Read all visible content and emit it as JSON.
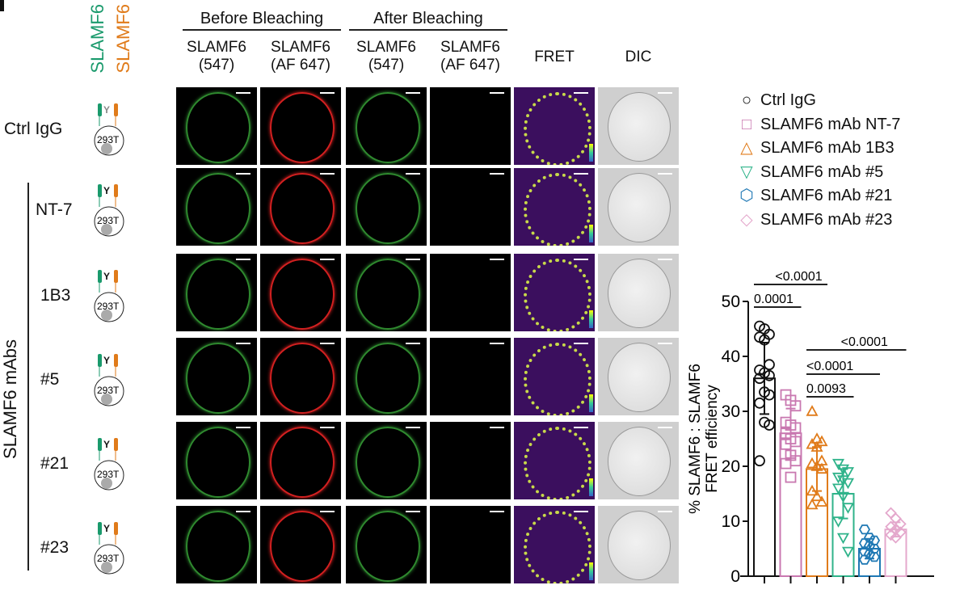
{
  "side_labels": {
    "green": "SLAMF6",
    "orange": "SLAMF6",
    "group": "SLAMF6 mAbs",
    "cell_line": "293T"
  },
  "colors": {
    "green": "#1a9a6c",
    "orange": "#e07b1a"
  },
  "groups": {
    "before": "Before Bleaching",
    "after": "After Bleaching"
  },
  "columns": [
    "SLAMF6\n(547)",
    "SLAMF6\n(AF 647)",
    "SLAMF6\n(547)",
    "SLAMF6\n(AF 647)",
    "FRET",
    "DIC"
  ],
  "rows": [
    "Ctrl IgG",
    "NT-7",
    "1B3",
    "#5",
    "#21",
    "#23"
  ],
  "legend": [
    {
      "label": "Ctrl IgG",
      "marker": "○",
      "color": "#111111"
    },
    {
      "label": "SLAMF6 mAb NT-7",
      "marker": "□",
      "color": "#c978b0"
    },
    {
      "label": "SLAMF6 mAb 1B3",
      "marker": "△",
      "color": "#e07b1a"
    },
    {
      "label": "SLAMF6 mAb #5",
      "marker": "▽",
      "color": "#2fb38a"
    },
    {
      "label": "SLAMF6 mAb #21",
      "marker": "⬡",
      "color": "#1f78b4"
    },
    {
      "label": "SLAMF6 mAb #23",
      "marker": "◇",
      "color": "#e4a8cc"
    }
  ],
  "chart_data": {
    "type": "bar",
    "ylabel": "% SLAMF6 : SLAMF6\nFRET efficiency",
    "ylim": [
      0,
      50
    ],
    "yticks": [
      "0",
      "10",
      "20",
      "30",
      "40",
      "50"
    ],
    "categories": [
      "Ctrl IgG",
      "SLAMF6 mAb NT-7",
      "SLAMF6 mAb 1B3",
      "SLAMF6 mAb #5",
      "SLAMF6 mAb #21",
      "SLAMF6 mAb #23"
    ],
    "series": [
      {
        "mean": 36,
        "sd": 6.5,
        "points": [
          45.5,
          45,
          44,
          43.5,
          43,
          38.5,
          37.5,
          37,
          36.5,
          36,
          33.5,
          33,
          31.5,
          28,
          27.5,
          21
        ]
      },
      {
        "mean": 26,
        "sd": 4.5,
        "points": [
          33,
          32,
          31,
          28,
          27.5,
          27,
          26,
          25,
          24.5,
          24,
          22,
          21,
          20.5,
          18
        ]
      },
      {
        "mean": 19.5,
        "sd": 4,
        "points": [
          30,
          25,
          24.5,
          24,
          23.5,
          21,
          20.5,
          20,
          19.5,
          15.5,
          14.5,
          13.5,
          13
        ]
      },
      {
        "mean": 15,
        "sd": 4.5,
        "points": [
          20.5,
          19.5,
          19,
          18,
          17.5,
          17,
          16,
          14.5,
          12.5,
          10,
          7,
          4.5
        ]
      },
      {
        "mean": 5,
        "sd": 1.8,
        "points": [
          8.5,
          7,
          6.5,
          6,
          5.5,
          5,
          4.5,
          4,
          3.5,
          3
        ]
      },
      {
        "mean": 8.5,
        "sd": 1.3,
        "points": [
          11.5,
          10.5,
          9.5,
          9,
          8.5,
          8,
          7.5,
          7
        ]
      }
    ],
    "comparisons": [
      {
        "label": "<0.0001",
        "from": 0,
        "to": 2
      },
      {
        "label": "0.0001",
        "from": 0,
        "to": 1
      },
      {
        "label": "<0.0001",
        "from": 2,
        "to": 5
      },
      {
        "label": "<0.0001",
        "from": 2,
        "to": 4
      },
      {
        "label": "0.0093",
        "from": 2,
        "to": 3
      }
    ]
  }
}
